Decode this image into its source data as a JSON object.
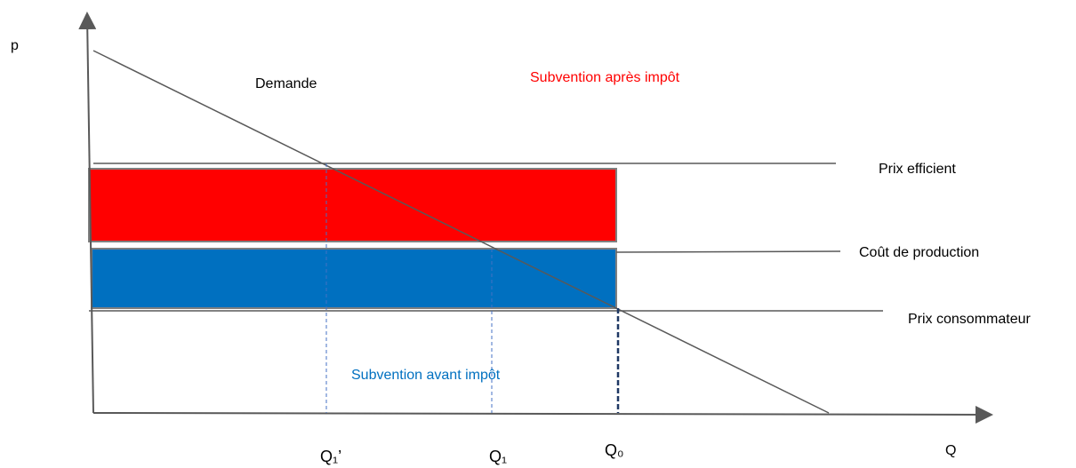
{
  "axes": {
    "y_label": "p",
    "x_label": "Q"
  },
  "labels": {
    "demand": "Demande",
    "subsidy_after_tax": "Subvention après impôt",
    "subsidy_before_tax": "Subvention avant impôt",
    "efficient_price": "Prix efficient",
    "production_cost": "Coût de production",
    "consumer_price": "Prix consommateur"
  },
  "quantities": {
    "q1_prime": "Q₁’",
    "q1": "Q₁",
    "q0": "Q₀"
  }
}
